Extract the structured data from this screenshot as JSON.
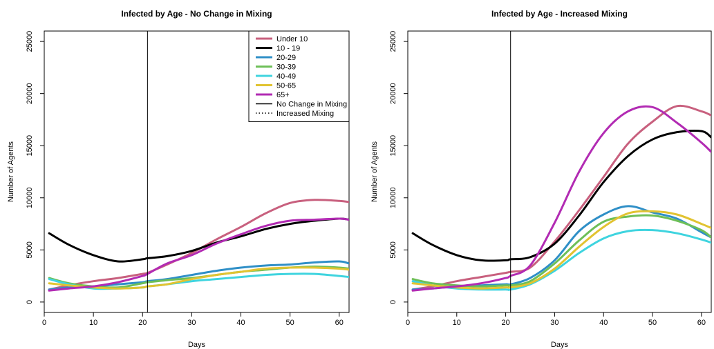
{
  "chart_data": [
    {
      "type": "line",
      "title": "Infected by Age - No Change in Mixing",
      "xlabel": "Days",
      "ylabel": "Number of Agents",
      "xlim": [
        0,
        62
      ],
      "ylim": [
        -1000,
        26000
      ],
      "xticks": [
        "0",
        "10",
        "20",
        "30",
        "40",
        "50",
        "60"
      ],
      "yticks": [
        "0",
        "5000",
        "10000",
        "15000",
        "20000",
        "25000"
      ],
      "vline": 21,
      "grid": false,
      "legend": {
        "position": "top-right",
        "entries": [
          {
            "label": "Under 10",
            "color": "#c8607e",
            "style": "thick"
          },
          {
            "label": "10 - 19",
            "color": "#000000",
            "style": "thick"
          },
          {
            "label": "20-29",
            "color": "#2f8fc7",
            "style": "thick"
          },
          {
            "label": "30-39",
            "color": "#6dbf58",
            "style": "thick"
          },
          {
            "label": "40-49",
            "color": "#3fd4df",
            "style": "thick"
          },
          {
            "label": "50-65",
            "color": "#e1c331",
            "style": "thick"
          },
          {
            "label": "65+",
            "color": "#b22bb3",
            "style": "thick"
          },
          {
            "label": "No Change in Mixing",
            "color": "#000000",
            "style": "solid"
          },
          {
            "label": "Increased Mixing",
            "color": "#000000",
            "style": "dotted"
          }
        ]
      },
      "series": [
        {
          "name": "Under 10",
          "color": "#c8607e",
          "x": [
            1,
            5,
            10,
            15,
            20,
            21,
            25,
            30,
            35,
            40,
            45,
            50,
            55,
            60,
            62
          ],
          "values": [
            1200,
            1600,
            2000,
            2300,
            2700,
            2800,
            3600,
            4700,
            6000,
            7200,
            8500,
            9500,
            9800,
            9700,
            9600
          ]
        },
        {
          "name": "10 - 19",
          "color": "#000000",
          "x": [
            1,
            5,
            10,
            15,
            20,
            21,
            25,
            30,
            35,
            40,
            45,
            50,
            55,
            60,
            62
          ],
          "values": [
            6600,
            5500,
            4500,
            3900,
            4100,
            4200,
            4400,
            4900,
            5700,
            6300,
            7000,
            7500,
            7800,
            8000,
            7900
          ]
        },
        {
          "name": "20-29",
          "color": "#2f8fc7",
          "x": [
            1,
            5,
            10,
            15,
            20,
            21,
            25,
            30,
            35,
            40,
            45,
            50,
            55,
            60,
            62
          ],
          "values": [
            1200,
            1400,
            1500,
            1700,
            1900,
            2000,
            2200,
            2600,
            3000,
            3300,
            3500,
            3600,
            3800,
            3900,
            3700
          ]
        },
        {
          "name": "30-39",
          "color": "#6dbf58",
          "x": [
            1,
            5,
            10,
            15,
            20,
            21,
            25,
            30,
            35,
            40,
            45,
            50,
            55,
            60,
            62
          ],
          "values": [
            2300,
            1800,
            1500,
            1400,
            1800,
            1900,
            2100,
            2300,
            2600,
            2900,
            3100,
            3300,
            3400,
            3300,
            3200
          ]
        },
        {
          "name": "40-49",
          "color": "#3fd4df",
          "x": [
            1,
            5,
            10,
            15,
            20,
            21,
            25,
            30,
            35,
            40,
            45,
            50,
            55,
            60,
            62
          ],
          "values": [
            2200,
            1700,
            1300,
            1300,
            1400,
            1500,
            1700,
            2000,
            2200,
            2400,
            2600,
            2700,
            2700,
            2500,
            2400
          ]
        },
        {
          "name": "50-65",
          "color": "#e1c331",
          "x": [
            1,
            5,
            10,
            15,
            20,
            21,
            25,
            30,
            35,
            40,
            45,
            50,
            55,
            60,
            62
          ],
          "values": [
            1800,
            1600,
            1400,
            1300,
            1400,
            1500,
            1700,
            2200,
            2600,
            2900,
            3200,
            3300,
            3300,
            3200,
            3100
          ]
        },
        {
          "name": "65+",
          "color": "#b22bb3",
          "x": [
            1,
            5,
            10,
            15,
            20,
            21,
            25,
            30,
            35,
            40,
            45,
            50,
            55,
            60,
            62
          ],
          "values": [
            1100,
            1300,
            1500,
            1900,
            2500,
            2700,
            3700,
            4500,
            5600,
            6500,
            7300,
            7800,
            7900,
            8000,
            7900
          ]
        }
      ]
    },
    {
      "type": "line",
      "title": "Infected by Age - Increased Mixing",
      "xlabel": "Days",
      "ylabel": "Number of Agents",
      "xlim": [
        0,
        62
      ],
      "ylim": [
        -1000,
        26000
      ],
      "xticks": [
        "0",
        "10",
        "20",
        "30",
        "40",
        "50",
        "60"
      ],
      "yticks": [
        "0",
        "5000",
        "10000",
        "15000",
        "20000",
        "25000"
      ],
      "vline": 21,
      "grid": false,
      "series": [
        {
          "name": "Under 10",
          "color": "#c8607e",
          "x": [
            1,
            5,
            10,
            15,
            20,
            21,
            25,
            30,
            35,
            40,
            45,
            50,
            55,
            60,
            62
          ],
          "values": [
            1200,
            1500,
            2000,
            2400,
            2800,
            2900,
            3300,
            5800,
            8800,
            12000,
            15200,
            17300,
            18800,
            18300,
            17900
          ]
        },
        {
          "name": "10 - 19",
          "color": "#000000",
          "x": [
            1,
            5,
            10,
            15,
            20,
            21,
            25,
            30,
            35,
            40,
            45,
            50,
            55,
            60,
            62
          ],
          "values": [
            6600,
            5500,
            4500,
            4000,
            4000,
            4100,
            4300,
            5600,
            8300,
            11500,
            14000,
            15600,
            16300,
            16400,
            15800
          ]
        },
        {
          "name": "20-29",
          "color": "#2f8fc7",
          "x": [
            1,
            5,
            10,
            15,
            20,
            21,
            25,
            30,
            35,
            40,
            45,
            50,
            55,
            60,
            62
          ],
          "values": [
            1200,
            1300,
            1500,
            1600,
            1700,
            1700,
            2300,
            4000,
            6800,
            8400,
            9200,
            8600,
            8000,
            6700,
            6200
          ]
        },
        {
          "name": "30-39",
          "color": "#6dbf58",
          "x": [
            1,
            5,
            10,
            15,
            20,
            21,
            25,
            30,
            35,
            40,
            45,
            50,
            55,
            60,
            62
          ],
          "values": [
            2200,
            1800,
            1600,
            1500,
            1600,
            1600,
            2000,
            3700,
            5900,
            7700,
            8200,
            8300,
            7800,
            6900,
            6200
          ]
        },
        {
          "name": "40-49",
          "color": "#3fd4df",
          "x": [
            1,
            5,
            10,
            15,
            20,
            21,
            25,
            30,
            35,
            40,
            45,
            50,
            55,
            60,
            62
          ],
          "values": [
            2000,
            1600,
            1300,
            1200,
            1200,
            1200,
            1700,
            3000,
            4700,
            6100,
            6800,
            6900,
            6600,
            6000,
            5700
          ]
        },
        {
          "name": "50-65",
          "color": "#e1c331",
          "x": [
            1,
            5,
            10,
            15,
            20,
            21,
            25,
            30,
            35,
            40,
            45,
            50,
            55,
            60,
            62
          ],
          "values": [
            1800,
            1600,
            1400,
            1300,
            1400,
            1400,
            1800,
            3200,
            5300,
            7200,
            8500,
            8700,
            8400,
            7500,
            7100
          ]
        },
        {
          "name": "65+",
          "color": "#b22bb3",
          "x": [
            1,
            5,
            10,
            15,
            20,
            21,
            25,
            30,
            35,
            40,
            45,
            50,
            55,
            60,
            62
          ],
          "values": [
            1100,
            1300,
            1500,
            1800,
            2300,
            2500,
            3500,
            7600,
            12500,
            16200,
            18300,
            18700,
            17200,
            15300,
            14400
          ]
        }
      ]
    }
  ]
}
